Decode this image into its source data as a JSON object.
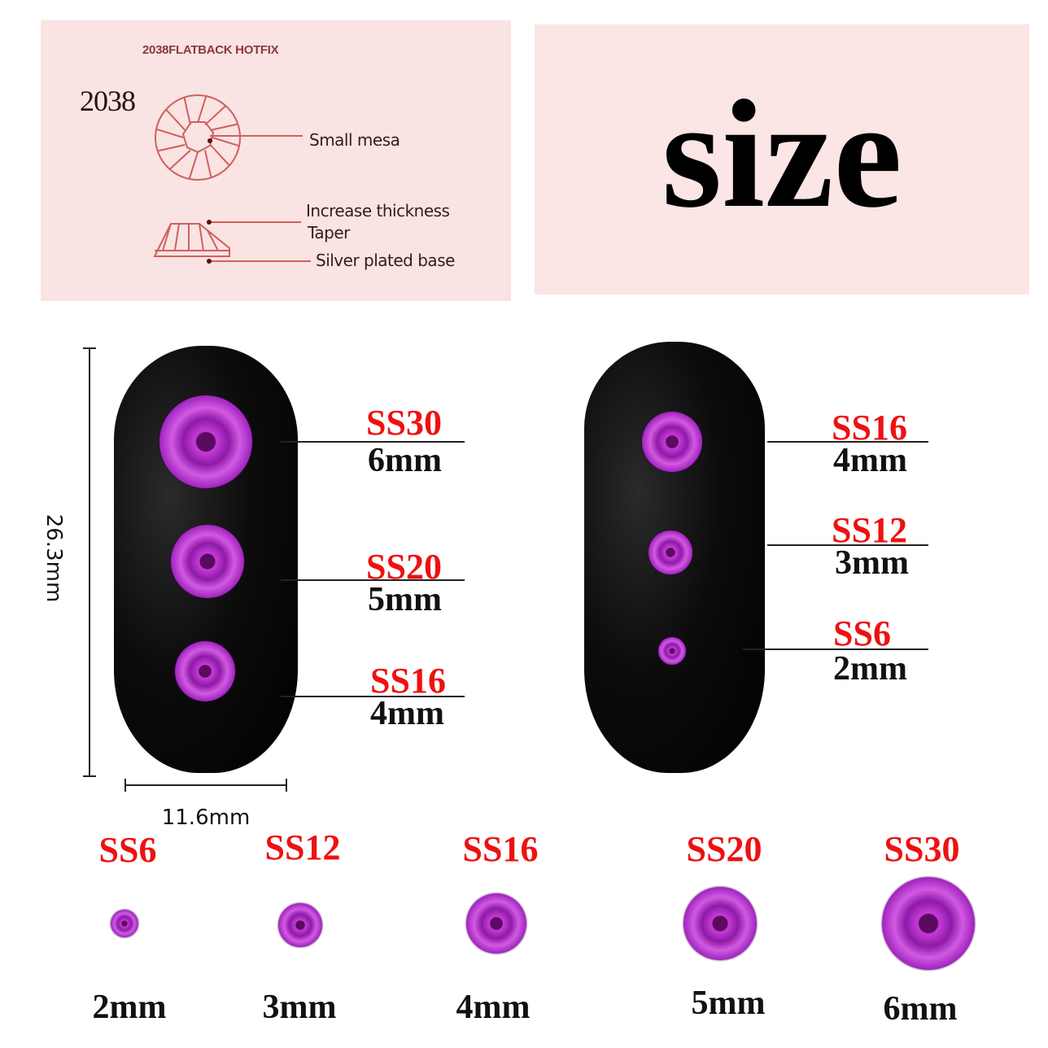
{
  "diagram_panel": {
    "title": "2038FLATBACK HOTFIX",
    "model": "2038",
    "labels": [
      "Small mesa",
      "Increase thickness",
      "Taper",
      "Silver plated base"
    ]
  },
  "headline": "size",
  "dimensions": {
    "height": "26.3mm",
    "width": "11.6mm"
  },
  "left_nail": [
    {
      "code": "SS30",
      "mm": "6mm"
    },
    {
      "code": "SS20",
      "mm": "5mm"
    },
    {
      "code": "SS16",
      "mm": "4mm"
    }
  ],
  "right_nail": [
    {
      "code": "SS16",
      "mm": "4mm"
    },
    {
      "code": "SS12",
      "mm": "3mm"
    },
    {
      "code": "SS6",
      "mm": "2mm"
    }
  ],
  "size_row": [
    {
      "code": "SS6",
      "mm": "2mm"
    },
    {
      "code": "SS12",
      "mm": "3mm"
    },
    {
      "code": "SS16",
      "mm": "4mm"
    },
    {
      "code": "SS20",
      "mm": "5mm"
    },
    {
      "code": "SS30",
      "mm": "6mm"
    }
  ],
  "colors": {
    "label_red": "#ee1111",
    "stone_purple": "#b02cc8",
    "panel_pink": "#f9e3e3"
  }
}
